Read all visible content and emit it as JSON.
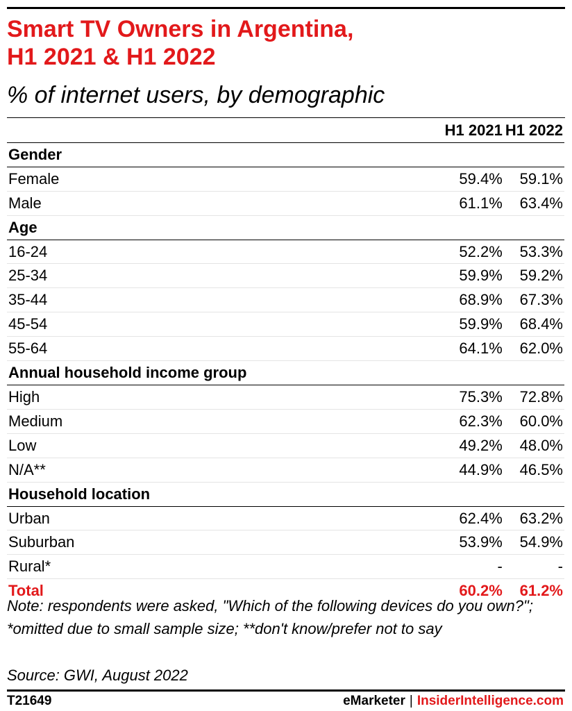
{
  "title": "Smart TV Owners in Argentina,\nH1 2021 & H1 2022",
  "subtitle": "% of internet users, by demographic",
  "columns": [
    "H1 2021",
    "H1 2022"
  ],
  "colors": {
    "accent": "#e2191b",
    "text": "#000000"
  },
  "chart_data": {
    "type": "table",
    "title": "Smart TV Owners in Argentina, H1 2021 & H1 2022",
    "subtitle": "% of internet users, by demographic",
    "columns": [
      "H1 2021",
      "H1 2022"
    ],
    "rows": [
      {
        "kind": "section",
        "label": "Gender"
      },
      {
        "kind": "row",
        "label": "Female",
        "values": [
          "59.4%",
          "59.1%"
        ]
      },
      {
        "kind": "row",
        "label": "Male",
        "values": [
          "61.1%",
          "63.4%"
        ]
      },
      {
        "kind": "section",
        "label": "Age"
      },
      {
        "kind": "row",
        "label": "16-24",
        "values": [
          "52.2%",
          "53.3%"
        ]
      },
      {
        "kind": "row",
        "label": "25-34",
        "values": [
          "59.9%",
          "59.2%"
        ]
      },
      {
        "kind": "row",
        "label": "35-44",
        "values": [
          "68.9%",
          "67.3%"
        ]
      },
      {
        "kind": "row",
        "label": "45-54",
        "values": [
          "59.9%",
          "68.4%"
        ]
      },
      {
        "kind": "row",
        "label": "55-64",
        "values": [
          "64.1%",
          "62.0%"
        ]
      },
      {
        "kind": "section",
        "label": "Annual household income group"
      },
      {
        "kind": "row",
        "label": "High",
        "values": [
          "75.3%",
          "72.8%"
        ]
      },
      {
        "kind": "row",
        "label": "Medium",
        "values": [
          "62.3%",
          "60.0%"
        ]
      },
      {
        "kind": "row",
        "label": "Low",
        "values": [
          "49.2%",
          "48.0%"
        ]
      },
      {
        "kind": "row",
        "label": "N/A**",
        "values": [
          "44.9%",
          "46.5%"
        ]
      },
      {
        "kind": "section",
        "label": "Household location"
      },
      {
        "kind": "row",
        "label": "Urban",
        "values": [
          "62.4%",
          "63.2%"
        ]
      },
      {
        "kind": "row",
        "label": "Suburban",
        "values": [
          "53.9%",
          "54.9%"
        ]
      },
      {
        "kind": "row",
        "label": "Rural*",
        "values": [
          "-",
          "-"
        ]
      },
      {
        "kind": "total",
        "label": "Total",
        "values": [
          "60.2%",
          "61.2%"
        ]
      }
    ]
  },
  "note": "Note: respondents were asked, \"Which of the following devices do you own?\"; *omitted due to small sample size; **don't know/prefer not to say",
  "source": "Source: GWI, August 2022",
  "footer": {
    "id": "T21649",
    "brand_left": "eMarketer",
    "separator": "|",
    "brand_right": "InsiderIntelligence.com"
  }
}
